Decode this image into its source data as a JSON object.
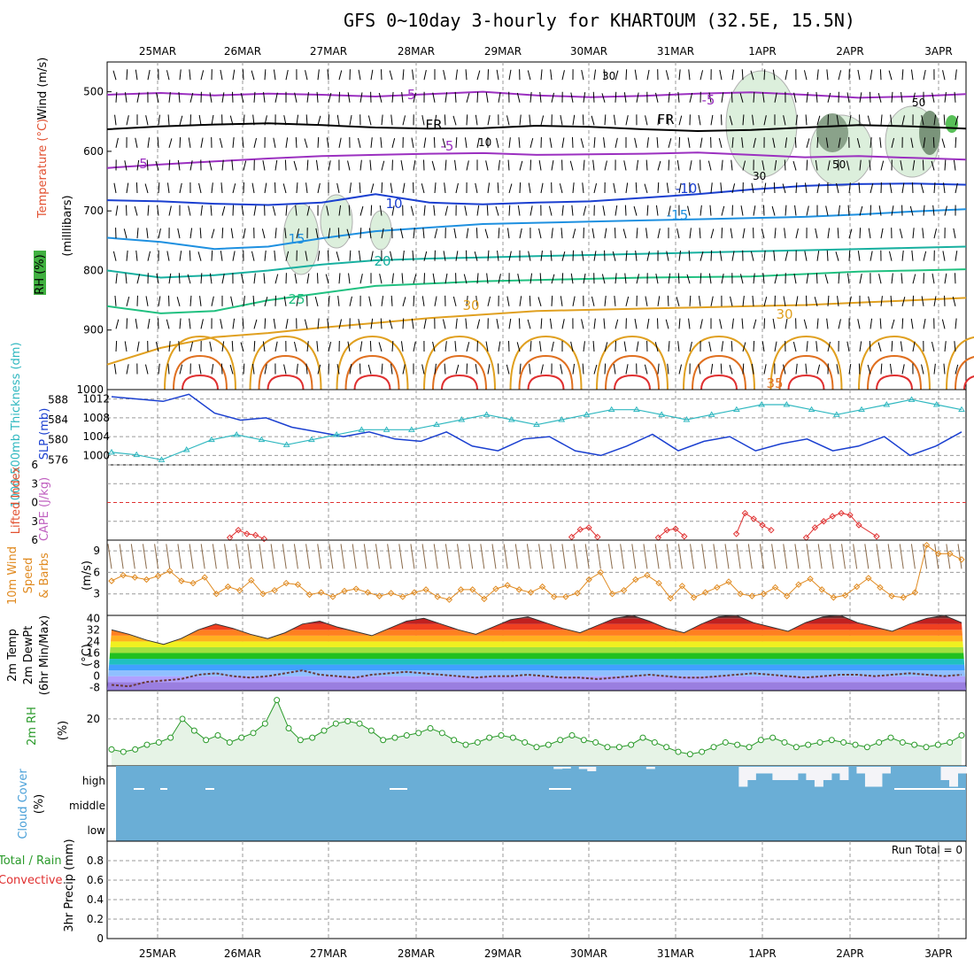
{
  "title": "GFS 0~10day 3-hourly for KHARTOUM (32.5E, 15.5N)",
  "dates": [
    "25MAR",
    "26MAR",
    "27MAR",
    "28MAR",
    "29MAR",
    "30MAR",
    "31MAR",
    "1APR",
    "2APR",
    "3APR"
  ],
  "colors": {
    "purple": "#9b30c0",
    "black": "#000000",
    "blue": "#1a3fd0",
    "lightblue": "#1e90e0",
    "teal": "#18b0a0",
    "green": "#20c080",
    "orange": "#e0a020",
    "darkorange": "#e07020",
    "red": "#e03030",
    "cyan": "#30b8c0",
    "rhgreen": "#2a9a2a",
    "cloud": "#6aaed6",
    "wind10": "#e08a20"
  },
  "chart_data": [
    {
      "type": "contour",
      "panel": "upper-air",
      "ylabel_parts": [
        "RH (%)",
        "Temperature (°C)",
        "Wind (m/s)"
      ],
      "yunit": "(milllibars)",
      "yticks": [
        "500",
        "600",
        "700",
        "800",
        "900",
        "1000"
      ],
      "ylim": [
        450,
        1000
      ],
      "contour_labels": [
        "-5",
        "-5",
        "FR",
        "FR",
        "-5",
        "5",
        "-10",
        "10",
        "-15",
        "15",
        "20",
        "25",
        "30",
        "30",
        "35"
      ],
      "isotherms": [
        {
          "temp": "-5",
          "color": "purple",
          "p": [
            505,
            502,
            506,
            503,
            505,
            508,
            504,
            500,
            506,
            509,
            507,
            503,
            501,
            505,
            510,
            508,
            504
          ]
        },
        {
          "temp": "FR",
          "color": "black",
          "p": [
            563,
            558,
            555,
            553,
            556,
            560,
            562,
            561,
            557,
            559,
            563,
            566,
            564,
            560,
            556,
            558,
            562
          ]
        },
        {
          "temp": "-5b",
          "color": "purple",
          "p": [
            628,
            622,
            617,
            612,
            608,
            606,
            604,
            603,
            606,
            605,
            604,
            602,
            606,
            610,
            608,
            611,
            614
          ]
        },
        {
          "temp": "-10",
          "color": "blue",
          "p": [
            682,
            684,
            688,
            690,
            686,
            672,
            686,
            689,
            686,
            684,
            678,
            672,
            664,
            658,
            655,
            654,
            656
          ]
        },
        {
          "temp": "-15",
          "color": "lightblue",
          "p": [
            745,
            752,
            764,
            760,
            746,
            734,
            728,
            722,
            720,
            718,
            716,
            714,
            712,
            710,
            706,
            701,
            697
          ]
        },
        {
          "temp": "20",
          "color": "teal",
          "p": [
            800,
            812,
            808,
            800,
            790,
            783,
            780,
            778,
            776,
            774,
            772,
            770,
            768,
            766,
            764,
            762,
            760
          ]
        },
        {
          "temp": "25",
          "color": "green",
          "p": [
            860,
            872,
            868,
            850,
            838,
            826,
            822,
            818,
            816,
            814,
            812,
            811,
            810,
            806,
            802,
            800,
            798
          ]
        },
        {
          "temp": "30",
          "color": "orange",
          "p": [
            958,
            930,
            912,
            905,
            896,
            888,
            880,
            874,
            868,
            866,
            864,
            862,
            860,
            858,
            854,
            850,
            846
          ]
        }
      ],
      "rh_labels": [
        "30",
        "50",
        "10",
        "50",
        "30"
      ]
    },
    {
      "type": "line",
      "panel": "slp-thickness",
      "series": [
        {
          "name": "SLP (mb)",
          "color": "blue",
          "values": [
            1012.5,
            1012,
            1011.5,
            1013,
            1009,
            1007.5,
            1008,
            1006,
            1005,
            1004,
            1005,
            1003.5,
            1003,
            1005,
            1002,
            1001,
            1003.5,
            1004,
            1001,
            1000,
            1002,
            1004.5,
            1001,
            1003,
            1004,
            1001,
            1002.5,
            1003.5,
            1001,
            1002,
            1004,
            1000,
            1002,
            1005
          ]
        },
        {
          "name": "1000-500mb Thickness (dm)",
          "color": "cyan",
          "values": [
            577.5,
            577,
            576,
            578,
            580,
            581,
            580,
            579,
            580,
            581,
            582,
            582,
            582,
            583,
            584,
            585,
            584,
            583,
            584,
            585,
            586,
            586,
            585,
            584,
            585,
            586,
            587,
            587,
            586,
            585,
            586,
            587,
            588,
            587,
            586
          ]
        }
      ],
      "yticks_left": [
        "576",
        "580",
        "584",
        "588"
      ],
      "yticks_right": [
        "1000",
        "1004",
        "1008",
        "1012"
      ],
      "ylabel_left": "1000-500mb Thickness (dm)",
      "ylabel_right": "SLP (mb)"
    },
    {
      "type": "line",
      "panel": "lifted-cape",
      "ylabel_left": "Lifted Index",
      "ylabel_right": "CAPE (J/kg)",
      "yticks": [
        "-6",
        "-3",
        "0",
        "3",
        "6"
      ],
      "ylim": [
        -6,
        6
      ],
      "series": [
        {
          "name": "Lifted Index",
          "color": "red",
          "x": [
            1.35,
            1.45,
            1.55,
            1.65,
            1.75
          ],
          "values": [
            5.6,
            4.4,
            5.0,
            5.2,
            5.8
          ]
        },
        {
          "name": "Lifted Index",
          "color": "red",
          "x": [
            5.3,
            5.4,
            5.5,
            5.6
          ],
          "values": [
            5.5,
            4.3,
            4.0,
            5.5
          ]
        },
        {
          "name": "Lifted Index",
          "color": "red",
          "x": [
            6.3,
            6.4,
            6.5,
            6.6
          ],
          "values": [
            5.6,
            4.4,
            4.2,
            5.4
          ]
        },
        {
          "name": "Lifted Index",
          "color": "red",
          "x": [
            7.2,
            7.3,
            7.4,
            7.5,
            7.6
          ],
          "values": [
            5.0,
            1.7,
            2.6,
            3.6,
            4.4
          ]
        },
        {
          "name": "Lifted Index",
          "color": "red",
          "x": [
            8.0,
            8.1,
            8.2,
            8.3,
            8.4,
            8.5,
            8.6,
            8.8
          ],
          "values": [
            5.6,
            4.0,
            3.0,
            2.2,
            1.7,
            2.0,
            3.6,
            5.4
          ]
        }
      ]
    },
    {
      "type": "line",
      "panel": "wind10m",
      "ylabel": [
        "10m Wind",
        "Speed",
        "& Barbs",
        "(m/s)"
      ],
      "yticks": [
        "3",
        "6",
        "9"
      ],
      "ylim": [
        0,
        10.5
      ],
      "series": [
        {
          "name": "10m Wind Speed",
          "color": "wind10",
          "values": [
            4.8,
            5.6,
            5.3,
            5.0,
            5.5,
            6.2,
            4.8,
            4.5,
            5.3,
            3.0,
            4.0,
            3.5,
            4.9,
            3.0,
            3.5,
            4.5,
            4.3,
            2.9,
            3.2,
            2.6,
            3.4,
            3.7,
            3.2,
            2.7,
            3.1,
            2.6,
            3.2,
            3.6,
            2.6,
            2.2,
            3.6,
            3.6,
            2.3,
            3.7,
            4.2,
            3.6,
            3.2,
            4.0,
            2.6,
            2.6,
            3.1,
            5.0,
            6.0,
            3.0,
            3.5,
            5.0,
            5.6,
            4.5,
            2.4,
            4.1,
            2.5,
            3.2,
            3.9,
            4.7,
            3.0,
            2.7,
            3.0,
            3.9,
            2.7,
            4.3,
            5.1,
            3.6,
            2.5,
            2.8,
            4.0,
            5.2,
            3.9,
            2.7,
            2.5,
            3.2,
            9.8,
            8.6,
            8.6,
            7.8
          ]
        }
      ]
    },
    {
      "type": "area",
      "panel": "temp2m",
      "ylabel": [
        "2m Temp",
        "2m DewPt",
        "(6hr Min/Max)",
        "(°C)"
      ],
      "yticks": [
        "-8",
        "0",
        "8",
        "16",
        "24",
        "32",
        "40"
      ],
      "ylim": [
        -10,
        42
      ],
      "series": [
        {
          "name": "2m Temp",
          "values": [
            32,
            29,
            25,
            22,
            26,
            32,
            36,
            33,
            29,
            26,
            30,
            36,
            38,
            34,
            31,
            28,
            33,
            38,
            40,
            36,
            32,
            29,
            34,
            39,
            41,
            37,
            33,
            30,
            35,
            40,
            42,
            38,
            33,
            30,
            36,
            41,
            42,
            37,
            34,
            31,
            37,
            41,
            42,
            37,
            34,
            31,
            36,
            40,
            42,
            37
          ]
        },
        {
          "name": "2m DewPt",
          "values": [
            -6,
            -7,
            -4,
            -3,
            -2,
            1,
            2,
            0,
            -1,
            0,
            2,
            4,
            1,
            0,
            -1,
            1,
            2,
            3,
            2,
            1,
            0,
            -1,
            0,
            0,
            1,
            0,
            -1,
            -1,
            -2,
            -1,
            0,
            1,
            0,
            -1,
            -1,
            0,
            1,
            2,
            1,
            0,
            -1,
            0,
            1,
            1,
            0,
            1,
            2,
            1,
            0,
            1
          ]
        }
      ]
    },
    {
      "type": "line",
      "panel": "rh2m",
      "ylabel": [
        "2m RH",
        "(%)"
      ],
      "yticks": [
        "20"
      ],
      "ylim": [
        0,
        32
      ],
      "series": [
        {
          "name": "2m RH",
          "color": "rhgreen",
          "values": [
            7,
            6,
            7,
            9,
            10,
            12,
            20,
            15,
            11,
            13,
            10,
            12,
            14,
            18,
            28,
            16,
            11,
            12,
            15,
            18,
            19,
            18,
            15,
            11,
            12,
            13,
            14,
            16,
            14,
            11,
            9,
            10,
            12,
            13,
            12,
            10,
            8,
            9,
            11,
            13,
            11,
            10,
            8,
            8,
            9,
            12,
            10,
            8,
            6,
            5,
            6,
            8,
            10,
            9,
            8,
            11,
            12,
            10,
            8,
            9,
            10,
            11,
            10,
            9,
            8,
            10,
            12,
            10,
            9,
            8,
            9,
            10,
            13
          ]
        }
      ]
    },
    {
      "type": "bar",
      "panel": "cloud",
      "ylabel": [
        "Cloud Cover",
        "(%)"
      ],
      "yticks": [
        "high",
        "middle",
        "low"
      ],
      "high_cloud": [
        0,
        0,
        0,
        0,
        0,
        0,
        0,
        0,
        0,
        0,
        0,
        0,
        0,
        0,
        0,
        0,
        0,
        0,
        0,
        0,
        0,
        0,
        0,
        0,
        0,
        0,
        0,
        0,
        0,
        0,
        0,
        0,
        0,
        0,
        0,
        0,
        0,
        0,
        0,
        0,
        0,
        0,
        0,
        0,
        0,
        0,
        0,
        0,
        0,
        0,
        0,
        0,
        10,
        8,
        0,
        10,
        20,
        0,
        0,
        0,
        0,
        0,
        0,
        10,
        0,
        0,
        0,
        0,
        0,
        0,
        0,
        0,
        0,
        0,
        90,
        60,
        30,
        30,
        60,
        60,
        60,
        30,
        60,
        90,
        60,
        30,
        60,
        0,
        30,
        90,
        90,
        30,
        0,
        0,
        0,
        0,
        0,
        0,
        60,
        90,
        30
      ]
    },
    {
      "type": "bar",
      "panel": "precip",
      "ylabel": [
        "Total / Rain",
        "Convective",
        "3hr Precip (mm)"
      ],
      "yticks": [
        "0",
        "0.2",
        "0.4",
        "0.6",
        "0.8"
      ],
      "ylim": [
        0,
        1
      ],
      "run_total_label": "Run Total = 0",
      "values": []
    }
  ]
}
